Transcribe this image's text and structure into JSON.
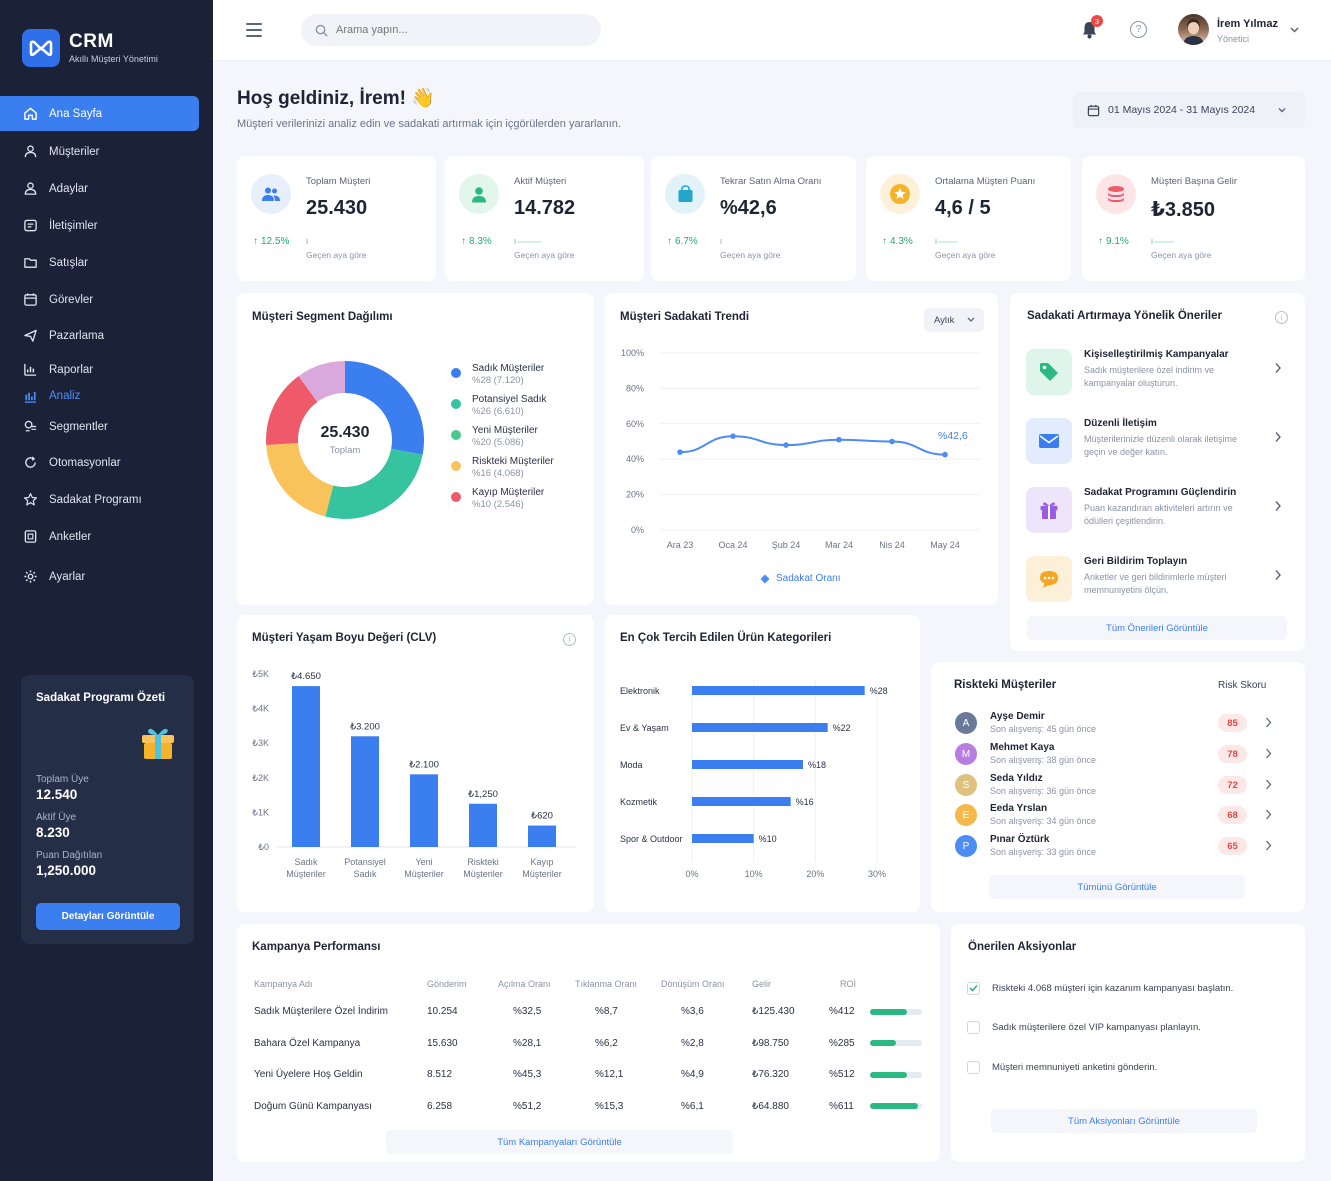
{
  "brand": {
    "title": "CRM",
    "subtitle": "Akıllı Müşteri Yönetimi"
  },
  "nav": [
    {
      "label": "Ana Sayfa",
      "icon": "home-icon"
    },
    {
      "label": "Müşteriler",
      "icon": "users-icon"
    },
    {
      "label": "Adaylar",
      "icon": "user-icon"
    },
    {
      "label": "İletişimler",
      "icon": "message-icon"
    },
    {
      "label": "Satışlar",
      "icon": "folder-icon"
    },
    {
      "label": "Görevler",
      "icon": "calendar-icon"
    },
    {
      "label": "Pazarlama",
      "icon": "send-icon"
    },
    {
      "label": "Raporlar",
      "icon": "report-icon"
    },
    {
      "label": "Analiz",
      "icon": "analysis-icon"
    },
    {
      "label": "Segmentler",
      "icon": "segment-icon"
    },
    {
      "label": "Otomasyonlar",
      "icon": "automation-icon"
    },
    {
      "label": "Sadakat Programı",
      "icon": "star-icon"
    },
    {
      "label": "Anketler",
      "icon": "survey-icon"
    },
    {
      "label": "Ayarlar",
      "icon": "gear-icon"
    }
  ],
  "loyalty_summary": {
    "title": "Sadakat Programı Özeti",
    "total_label": "Toplam Üye",
    "total_value": "12.540",
    "active_label": "Aktif Üye",
    "active_value": "8.230",
    "points_label": "Puan Dağıtılan",
    "points_value": "1,250.000",
    "button": "Detayları Görüntüle"
  },
  "topbar": {
    "search_placeholder": "Arama yapın...",
    "notification_count": "3",
    "user_name": "İrem Yılmaz",
    "user_role": "Yönetici"
  },
  "header": {
    "title": "Hoş geldiniz, İrem! 👋",
    "subtitle": "Müşteri verilerinizi analiz edin ve sadakati artırmak için içgörülerden yararlanın.",
    "date_range": "01 Mayıs 2024 - 31 Mayıs 2024"
  },
  "kpis": [
    {
      "label": "Toplam Müşteri",
      "value": "25.430",
      "delta": "12.5%",
      "comparison": "Geçen aya göre",
      "color": "#3b7ef0",
      "bg": "#e7effd"
    },
    {
      "label": "Aktif Müşteri",
      "value": "14.782",
      "delta": "8.3%",
      "comparison": "Geçen aya göre",
      "color": "#2bb883",
      "bg": "#e2f6ee"
    },
    {
      "label": "Tekrar Satın Alma Oranı",
      "value": "%42,6",
      "delta": "6.7%",
      "comparison": "Geçen aya göre",
      "color": "#23a6c9",
      "bg": "#e1f3f9"
    },
    {
      "label": "Ortalama Müşteri Puanı",
      "value": "4,6 / 5",
      "delta": "4.3%",
      "comparison": "Geçen aya göre",
      "color": "#f5b427",
      "bg": "#fdf2d9"
    },
    {
      "label": "Müşteri Başına Gelir",
      "value": "₺3.850",
      "delta": "9.1%",
      "comparison": "Geçen aya göre",
      "color": "#ef5a6a",
      "bg": "#fde4e7"
    }
  ],
  "segment": {
    "title": "Müşteri Segment Dağılımı",
    "center_value": "25.430",
    "center_label": "Toplam",
    "items": [
      {
        "name": "Sadık Müşteriler",
        "detail": "%28 (7.120)",
        "color": "#3b7ef0"
      },
      {
        "name": "Potansiyel Sadık",
        "detail": "%26 (6.610)",
        "color": "#35c3a0"
      },
      {
        "name": "Yeni Müşteriler",
        "detail": "%20 (5.086)",
        "color": "#4bc98c"
      },
      {
        "name": "Riskteki Müşteriler",
        "detail": "%16 (4.068)",
        "color": "#f7c35a"
      },
      {
        "name": "Kayıp Müşteriler",
        "detail": "%10 (2.546)",
        "color": "#ef5a6a"
      }
    ]
  },
  "trend": {
    "title": "Müşteri Sadakati Trendi",
    "period": "Aylık",
    "end_label": "%42,6",
    "legend": "Sadakat Oranı"
  },
  "suggestions": {
    "title": "Sadakati Artırmaya Yönelik Öneriler",
    "items": [
      {
        "title": "Kişiselleştirilmiş Kampanyalar",
        "desc": "Sadık müşterilere özel indirim ve kampanyalar oluşturun.",
        "icon": "tag-icon",
        "color": "#2bb883",
        "bg": "#dff5ec"
      },
      {
        "title": "Düzenli İletişim",
        "desc": "Müşterilerinizle düzenli olarak iletişime geçin ve değer katın.",
        "icon": "mail-icon",
        "color": "#3b7ef0",
        "bg": "#e3ecfd"
      },
      {
        "title": "Sadakat Programını Güçlendirin",
        "desc": "Puan kazandıran aktiviteleri artırın ve ödülleri çeşitlendirin.",
        "icon": "gift-icon",
        "color": "#9a5ce6",
        "bg": "#efe5fb"
      },
      {
        "title": "Geri Bildirim Toplayın",
        "desc": "Anketler ve geri bildirimlerle müşteri memnuniyetini ölçün.",
        "icon": "chat-icon",
        "color": "#f5a623",
        "bg": "#fdf0d8"
      }
    ],
    "view_all": "Tüm Önerileri Görüntüle"
  },
  "clv": {
    "title": "Müşteri Yaşam Boyu Değeri (CLV)"
  },
  "categories": {
    "title": "En Çok Tercih Edilen Ürün Kategorileri"
  },
  "risk": {
    "title": "Riskteki Müşteriler",
    "score_header": "Risk Skoru",
    "rows": [
      {
        "initial": "A",
        "name": "Ayşe Demir",
        "sub": "Son alışveriş: 45 gün önce",
        "score": "85",
        "color": "#6b7a99"
      },
      {
        "initial": "M",
        "name": "Mehmet Kaya",
        "sub": "Son alışveriş: 38 gün önce",
        "score": "78",
        "color": "#b77ee0"
      },
      {
        "initial": "S",
        "name": "Seda Yıldız",
        "sub": "Son alışveriş: 36 gün önce",
        "score": "72",
        "color": "#e0c07e"
      },
      {
        "initial": "E",
        "name": "Eeda Yrslan",
        "sub": "Son alışveriş: 34 gün önce",
        "score": "68",
        "color": "#f5b84a"
      },
      {
        "initial": "P",
        "name": "Pınar Öztürk",
        "sub": "Son alışveriş: 33 gün önce",
        "score": "65",
        "color": "#4d8cf5"
      }
    ],
    "view_all": "Tümünü Görüntüle"
  },
  "campaigns": {
    "title": "Kampanya Performansı",
    "headers": [
      "Kampanya Adı",
      "Gönderim",
      "Açılma Oranı",
      "Tıklanma Oranı",
      "Dönüşüm Oranı",
      "Gelir",
      "ROİ"
    ],
    "rows": [
      {
        "name": "Sadık Müşterilere Özel İndirim",
        "sent": "10.254",
        "open": "%32,5",
        "click": "%8,7",
        "conv": "%3,6",
        "revenue": "₺125.430",
        "roi": "%412",
        "roi_level": 0.72
      },
      {
        "name": "Bahara Özel Kampanya",
        "sent": "15.630",
        "open": "%28,1",
        "click": "%6,2",
        "conv": "%2,8",
        "revenue": "₺98.750",
        "roi": "%285",
        "roi_level": 0.5
      },
      {
        "name": "Yeni Üyelere Hoş Geldin",
        "sent": "8.512",
        "open": "%45,3",
        "click": "%12,1",
        "conv": "%4,9",
        "revenue": "₺76.320",
        "roi": "%512",
        "roi_level": 0.72
      },
      {
        "name": "Doğum Günü Kampanyası",
        "sent": "6.258",
        "open": "%51,2",
        "click": "%15,3",
        "conv": "%6,1",
        "revenue": "₺64.880",
        "roi": "%611",
        "roi_level": 0.92
      }
    ],
    "view_all": "Tüm Kampanyaları Görüntüle"
  },
  "actions": {
    "title": "Önerilen Aksiyonlar",
    "items": [
      {
        "text": "Riskteki 4.068 müşteri için kazanım kampanyası başlatın.",
        "done": true
      },
      {
        "text": "Sadık müşterilere özel VIP kampanyası planlayın.",
        "done": false
      },
      {
        "text": "Müşteri memnuniyeti anketini gönderin.",
        "done": false
      }
    ],
    "view_all": "Tüm Aksiyonları Görüntüle"
  },
  "chart_data": [
    {
      "type": "pie",
      "title": "Müşteri Segment Dağılımı",
      "categories": [
        "Sadık Müşteriler",
        "Potansiyel Sadık",
        "Yeni Müşteriler",
        "Riskteki Müşteriler",
        "Kayıp Müşteriler"
      ],
      "values": [
        28,
        26,
        20,
        16,
        10
      ],
      "colors": [
        "#3b7ef0",
        "#35c3a0",
        "#f7c35a",
        "#ef5a6a",
        "#d9a9dc"
      ]
    },
    {
      "type": "line",
      "title": "Müşteri Sadakati Trendi",
      "x": [
        "Ara 23",
        "Oca 24",
        "Şub 24",
        "Mar 24",
        "Nis 24",
        "May 24"
      ],
      "series": [
        {
          "name": "Sadakat Oranı",
          "values": [
            44,
            53,
            48,
            51,
            50,
            42.6
          ]
        }
      ],
      "yticks": [
        "0%",
        "20%",
        "40%",
        "60%",
        "80%",
        "100%"
      ],
      "ylim": [
        0,
        100
      ],
      "color": "#4d8cf5"
    },
    {
      "type": "bar",
      "title": "Müşteri Yaşam Boyu Değeri (CLV)",
      "categories": [
        "Sadık Müşteriler",
        "Potansiyel Sadık",
        "Yeni Müşteriler",
        "Riskteki Müşteriler",
        "Kayıp Müşteriler"
      ],
      "category_lines": [
        [
          "Sadık",
          "Müşteriler"
        ],
        [
          "Potansiyel",
          "Sadık"
        ],
        [
          "Yeni",
          "Müşteriler"
        ],
        [
          "Riskteki",
          "Müşteriler"
        ],
        [
          "Kayıp",
          "Müşteriler"
        ]
      ],
      "values": [
        4650,
        3200,
        2100,
        1250,
        620
      ],
      "value_labels": [
        "₺4.650",
        "₺3.200",
        "₺2.100",
        "₺1,250",
        "₺620"
      ],
      "yticks": [
        "₺0",
        "₺1K",
        "₺2K",
        "₺3K",
        "₺4K",
        "₺5K"
      ],
      "ylim": [
        0,
        5000
      ],
      "color": "#3b7ef0"
    },
    {
      "type": "bar",
      "orientation": "horizontal",
      "title": "En Çok Tercih Edilen Ürün Kategorileri",
      "categories": [
        "Elektronik",
        "Ev & Yaşam",
        "Moda",
        "Kozmetik",
        "Spor & Outdoor"
      ],
      "values": [
        28,
        22,
        18,
        16,
        10
      ],
      "value_labels": [
        "%28",
        "%22",
        "%18",
        "%16",
        "%10"
      ],
      "xticks": [
        "0%",
        "10%",
        "20%",
        "30%"
      ],
      "xlim": [
        0,
        30
      ],
      "color": "#3b7ef0"
    }
  ]
}
